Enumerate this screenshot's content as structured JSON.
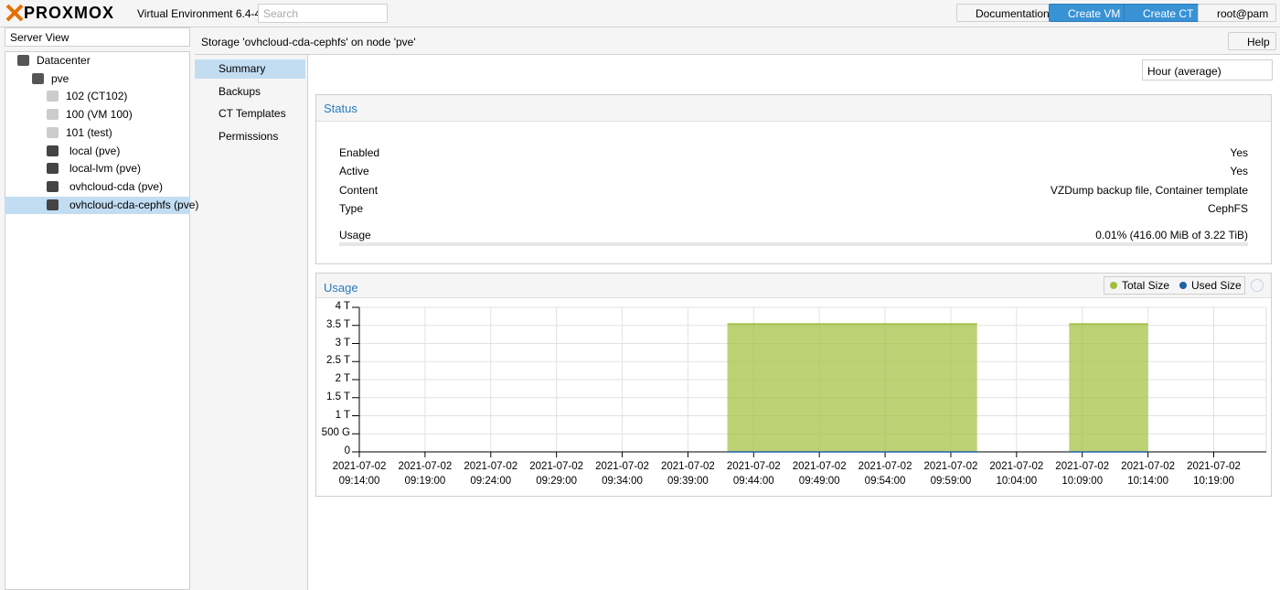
{
  "header": {
    "brand": "PROXMOX",
    "version": "Virtual Environment 6.4-4",
    "search_placeholder": "Search",
    "buttons": [
      "Documentation",
      "Create VM",
      "Create CT"
    ],
    "user": "root@pam"
  },
  "sidebar": {
    "view": "Server View",
    "tree": [
      "Datacenter",
      "pve",
      "102 (CT102)",
      "100 (VM 100)",
      "101 (test)",
      "local (pve)",
      "local-lvm (pve)",
      "ovhcloud-cda (pve)",
      "ovhcloud-cda-cephfs (pve)"
    ]
  },
  "content": {
    "title": "Storage 'ovhcloud-cda-cephfs' on node 'pve'",
    "help": "Help",
    "menu": [
      "Summary",
      "Backups",
      "CT Templates",
      "Permissions"
    ],
    "timeframe": "Hour (average)"
  },
  "status": {
    "title": "Status",
    "rows": [
      [
        "Enabled",
        "Yes"
      ],
      [
        "Active",
        "Yes"
      ],
      [
        "Content",
        "VZDump backup file, Container template"
      ],
      [
        "Type",
        "CephFS"
      ],
      [
        "Usage",
        "0.01% (416.00 MiB of 3.22 TiB)"
      ]
    ]
  },
  "chart_data": {
    "type": "area",
    "title": "Usage",
    "x": [
      "2021-07-02 09:42:00",
      "2021-07-02 10:01:00",
      "2021-07-02 10:04:00",
      "2021-07-02 10:08:00",
      "2021-07-02 10:14:00"
    ],
    "series": [
      {
        "name": "Total Size",
        "color": "#9fbf3b",
        "values": [
          3.54,
          3.54,
          null,
          3.54,
          3.54
        ]
      },
      {
        "name": "Used Size",
        "color": "#1f5fa6",
        "values": [
          0.00044,
          0.00044,
          null,
          0.00044,
          0.00044
        ]
      }
    ],
    "xlim": [
      "2021-07-02 09:14:00",
      "2021-07-02 10:23:00"
    ],
    "xticks": [
      "2021-07-02 09:14:00",
      "2021-07-02 09:19:00",
      "2021-07-02 09:24:00",
      "2021-07-02 09:29:00",
      "2021-07-02 09:34:00",
      "2021-07-02 09:39:00",
      "2021-07-02 09:44:00",
      "2021-07-02 09:49:00",
      "2021-07-02 09:54:00",
      "2021-07-02 09:59:00",
      "2021-07-02 10:04:00",
      "2021-07-02 10:09:00",
      "2021-07-02 10:14:00",
      "2021-07-02 10:19:00"
    ],
    "ylim": [
      0,
      4
    ],
    "yticks": [
      0,
      {
        "value": 0.5,
        "label": "500 G"
      },
      {
        "value": 1,
        "label": "1 T"
      },
      {
        "value": 1.5,
        "label": "1.5 T"
      },
      {
        "value": 2,
        "label": "2 T"
      },
      {
        "value": 2.5,
        "label": "2.5 T"
      },
      {
        "value": 3,
        "label": "3 T"
      },
      {
        "value": 3.5,
        "label": "3.5 T"
      },
      {
        "value": 4,
        "label": "4 T"
      }
    ],
    "grid": true
  }
}
